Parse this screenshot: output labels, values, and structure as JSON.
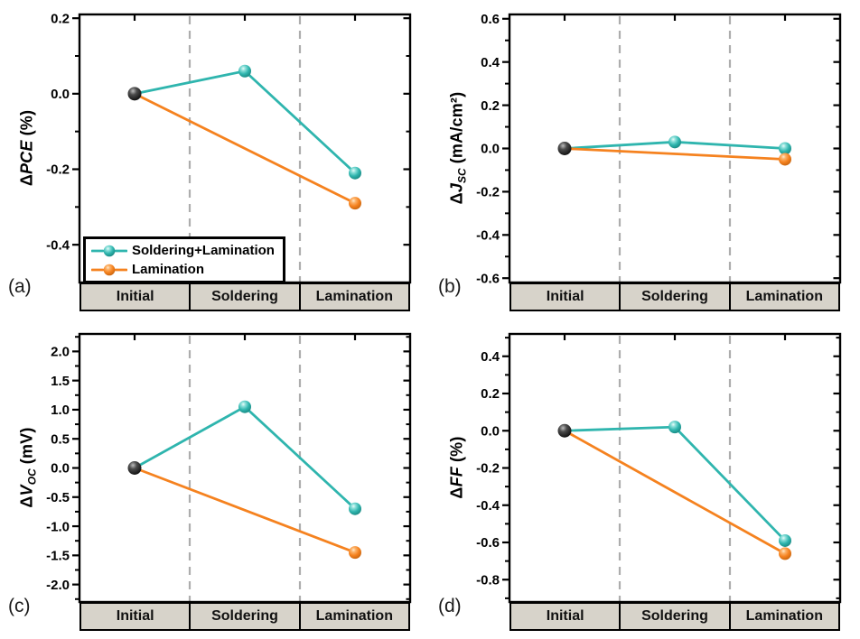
{
  "colors": {
    "teal": "#2fb5ae",
    "orange": "#f5821f",
    "initial_marker": "#141414",
    "dashed_divider": "#adadad",
    "band_fill": "#d7d3ca",
    "frame": "#000000",
    "background": "#ffffff"
  },
  "chart_data": [
    {
      "panel_label": "(a)",
      "type": "line",
      "ylabel": {
        "delta": "Δ",
        "symbol": "PCE",
        "sub": "",
        "unit": "(%)"
      },
      "categories": [
        "Initial",
        "Soldering",
        "Lamination"
      ],
      "ylim": [
        -0.5,
        0.21
      ],
      "yticks_major": [
        0.2,
        0.0,
        -0.2,
        -0.4
      ],
      "yminor_step": 0.1,
      "ytick_decimals": 1,
      "series": [
        {
          "name": "Soldering+Lamination",
          "color_key": "teal",
          "values": [
            0.0,
            0.06,
            -0.21
          ]
        },
        {
          "name": "Lamination",
          "color_key": "orange",
          "values": [
            0.0,
            null,
            -0.29
          ]
        }
      ],
      "legend": {
        "entries": [
          {
            "label": "Soldering+Lamination",
            "color_key": "teal"
          },
          {
            "label": "Lamination",
            "color_key": "orange"
          }
        ]
      }
    },
    {
      "panel_label": "(b)",
      "type": "line",
      "ylabel": {
        "delta": "Δ",
        "symbol": "J",
        "sub": "SC",
        "unit": "(mA/cm²)"
      },
      "categories": [
        "Initial",
        "Soldering",
        "Lamination"
      ],
      "ylim": [
        -0.62,
        0.62
      ],
      "yticks_major": [
        0.6,
        0.4,
        0.2,
        0.0,
        -0.2,
        -0.4,
        -0.6
      ],
      "yminor_step": 0.1,
      "ytick_decimals": 1,
      "series": [
        {
          "name": "Soldering+Lamination",
          "color_key": "teal",
          "values": [
            0.0,
            0.03,
            0.0
          ]
        },
        {
          "name": "Lamination",
          "color_key": "orange",
          "values": [
            0.0,
            null,
            -0.05
          ]
        }
      ]
    },
    {
      "panel_label": "(c)",
      "type": "line",
      "ylabel": {
        "delta": "Δ",
        "symbol": "V",
        "sub": "OC",
        "unit": "(mV)"
      },
      "categories": [
        "Initial",
        "Soldering",
        "Lamination"
      ],
      "ylim": [
        -2.3,
        2.3
      ],
      "yticks_major": [
        2.0,
        1.5,
        1.0,
        0.5,
        0.0,
        -0.5,
        -1.0,
        -1.5,
        -2.0
      ],
      "yminor_step": 0.25,
      "ytick_decimals": 1,
      "series": [
        {
          "name": "Soldering+Lamination",
          "color_key": "teal",
          "values": [
            0.0,
            1.05,
            -0.7
          ]
        },
        {
          "name": "Lamination",
          "color_key": "orange",
          "values": [
            0.0,
            null,
            -1.45
          ]
        }
      ]
    },
    {
      "panel_label": "(d)",
      "type": "line",
      "ylabel": {
        "delta": "Δ",
        "symbol": "FF",
        "sub": "",
        "unit": "(%)"
      },
      "categories": [
        "Initial",
        "Soldering",
        "Lamination"
      ],
      "ylim": [
        -0.92,
        0.52
      ],
      "yticks_major": [
        0.4,
        0.2,
        0.0,
        -0.2,
        -0.4,
        -0.6,
        -0.8
      ],
      "yminor_step": 0.1,
      "ytick_decimals": 1,
      "series": [
        {
          "name": "Soldering+Lamination",
          "color_key": "teal",
          "values": [
            0.0,
            0.02,
            -0.59
          ]
        },
        {
          "name": "Lamination",
          "color_key": "orange",
          "values": [
            0.0,
            null,
            -0.66
          ]
        }
      ]
    }
  ]
}
